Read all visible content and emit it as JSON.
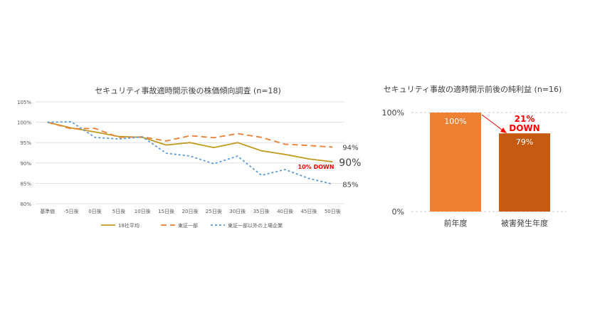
{
  "colors": {
    "series_1": "#c29a1d",
    "series_2": "#ec7f32",
    "series_3": "#5b9bd5",
    "bar_1": "#ee7f33",
    "bar_2": "#c55a12",
    "highlight": "#ff0000",
    "axis_text": "#595959",
    "grid": "#d9d9d9"
  },
  "chart_data": [
    {
      "type": "line",
      "title": "セキュリティ事故適時開示後の株価傾向調査 (n=18)",
      "categories": [
        "基準値",
        "-5日後",
        "0日後",
        "5日後",
        "10日後",
        "15日後",
        "20日後",
        "25日後",
        "30日後",
        "35日後",
        "40日後",
        "45日後",
        "50日後"
      ],
      "y_ticks": [
        "105%",
        "100%",
        "95%",
        "90%",
        "85%",
        "80%"
      ],
      "ylim": [
        80,
        105
      ],
      "grid": true,
      "legend_position": "bottom",
      "series": [
        {
          "name": "18社平均",
          "style": "solid",
          "color_key": "series_1",
          "values": [
            100,
            98.6,
            97.6,
            96.5,
            96.3,
            94.4,
            95.0,
            93.8,
            95.0,
            93.0,
            92.1,
            91.0,
            90.3
          ]
        },
        {
          "name": "東証一部",
          "style": "long-dash",
          "color_key": "series_2",
          "values": [
            100,
            98.4,
            98.5,
            96.3,
            96.4,
            95.4,
            96.7,
            96.2,
            97.2,
            96.3,
            94.6,
            94.3,
            93.9
          ]
        },
        {
          "name": "東証一部以外の上場企業",
          "style": "short-dash",
          "color_key": "series_3",
          "values": [
            100,
            100.1,
            96.3,
            95.9,
            96.4,
            92.4,
            91.7,
            89.8,
            91.7,
            87.0,
            88.4,
            86.2,
            84.8
          ]
        }
      ],
      "annotations": {
        "series_1_end": "90%",
        "series_2_end": "94%",
        "series_3_end": "85%",
        "down_note": "10% DOWN"
      }
    },
    {
      "type": "bar",
      "title": "セキュリティ事故の適時開示前後の純利益 (n=16)",
      "categories": [
        "前年度",
        "被害発生年度"
      ],
      "values": [
        100,
        79
      ],
      "value_labels": [
        "100%",
        "79%"
      ],
      "y_ticks": [
        "100%",
        "0%"
      ],
      "ylim": [
        0,
        100
      ],
      "annotation": {
        "line1": "21%",
        "line2": "DOWN"
      }
    }
  ]
}
